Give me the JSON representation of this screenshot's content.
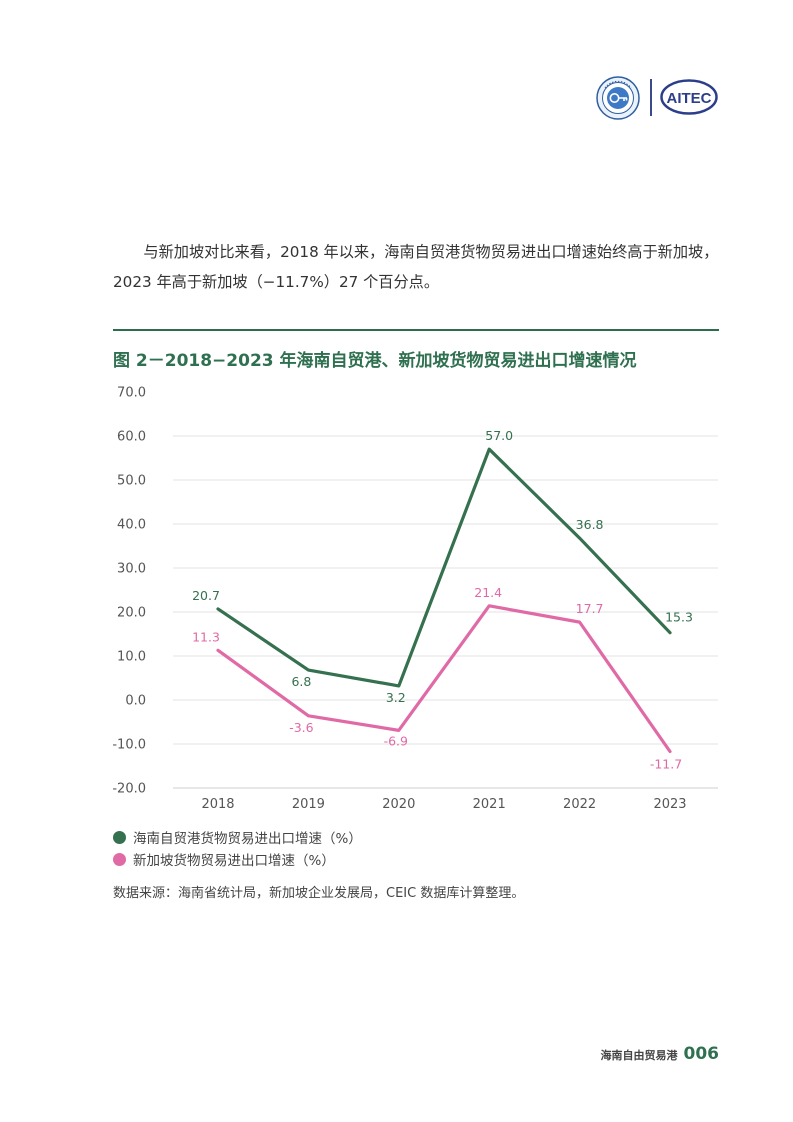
{
  "header": {
    "logo_left_icon": "institute-seal-logo",
    "logo_right_text": "AITEC"
  },
  "intro_text": "与新加坡对比来看，2018 年以来，海南自贸港货物贸易进出口增速始终高于新加坡，2023 年高于新加坡（−11.7%）27 个百分点。",
  "figure": {
    "title": "图 2－2018−2023 年海南自贸港、新加坡货物贸易进出口增速情况",
    "rule_color": "#2e6b4f"
  },
  "chart_data": {
    "type": "line",
    "x": [
      "2018",
      "2019",
      "2020",
      "2021",
      "2022",
      "2023"
    ],
    "y_ticks": [
      "70.0",
      "60.0",
      "50.0",
      "40.0",
      "30.0",
      "20.0",
      "10.0",
      "0.0",
      "-10.0",
      "-20.0"
    ],
    "ylim": [
      -20,
      70
    ],
    "y_step": 10,
    "grid": true,
    "legend_position": "bottom-left",
    "xlabel": "",
    "ylabel": "",
    "series": [
      {
        "name": "海南自贸港货物贸易进出口增速（%）",
        "color": "#35704f",
        "values": [
          20.7,
          6.8,
          3.2,
          57.0,
          36.8,
          15.3
        ],
        "labels": [
          "20.7",
          "6.8",
          "3.2",
          "57.0",
          "36.8",
          "15.3"
        ]
      },
      {
        "name": "新加坡货物贸易进出口增速（%）",
        "color": "#e06aa6",
        "values": [
          11.3,
          -3.6,
          -6.9,
          21.4,
          17.7,
          -11.7
        ],
        "labels": [
          "11.3",
          "-3.6",
          "-6.9",
          "21.4",
          "17.7",
          "-11.7"
        ]
      }
    ]
  },
  "source": "数据来源：海南省统计局，新加坡企业发展局，CEIC 数据库计算整理。",
  "footer": {
    "label": "海南自由贸易港",
    "page": "006"
  }
}
